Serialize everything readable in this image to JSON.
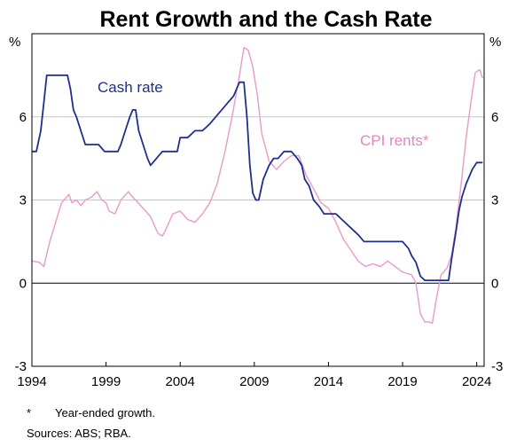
{
  "chart_data": {
    "type": "line",
    "title": "Rent Growth and the Cash Rate",
    "y_unit_left": "%",
    "y_unit_right": "%",
    "ylim": [
      -3,
      9
    ],
    "yticks": [
      -3,
      0,
      3,
      6
    ],
    "xlim": [
      1994,
      2024.5
    ],
    "xticks": [
      1994,
      1999,
      2004,
      2009,
      2014,
      2019,
      2024
    ],
    "grid": true,
    "legend": "inline labels",
    "series": [
      {
        "name": "Cash rate",
        "label": "Cash rate",
        "color": "#1f2f8c",
        "x": [
          1994.0,
          1994.3,
          1994.6,
          1994.8,
          1995.0,
          1995.5,
          1996.0,
          1996.4,
          1996.6,
          1996.8,
          1997.0,
          1997.3,
          1997.6,
          1998.0,
          1998.5,
          1998.9,
          1999.4,
          1999.8,
          2000.0,
          2000.3,
          2000.6,
          2000.8,
          2001.0,
          2001.2,
          2001.5,
          2001.8,
          2002.0,
          2002.4,
          2002.8,
          2003.0,
          2003.4,
          2003.8,
          2004.0,
          2004.5,
          2005.0,
          2005.5,
          2006.0,
          2006.4,
          2006.8,
          2007.2,
          2007.6,
          2008.0,
          2008.3,
          2008.5,
          2008.7,
          2008.9,
          2009.1,
          2009.3,
          2009.6,
          2010.0,
          2010.3,
          2010.6,
          2011.0,
          2011.5,
          2011.9,
          2012.2,
          2012.4,
          2012.7,
          2013.0,
          2013.4,
          2013.7,
          2014.0,
          2014.5,
          2015.0,
          2015.5,
          2016.0,
          2016.4,
          2016.6,
          2017.0,
          2018.0,
          2019.0,
          2019.4,
          2019.6,
          2019.9,
          2020.2,
          2020.5,
          2021.0,
          2021.5,
          2022.1,
          2022.3,
          2022.6,
          2022.8,
          2023.0,
          2023.3,
          2023.7,
          2024.0,
          2024.4
        ],
        "values": [
          4.75,
          4.75,
          5.5,
          6.5,
          7.5,
          7.5,
          7.5,
          7.5,
          7.0,
          6.25,
          6.0,
          5.5,
          5.0,
          5.0,
          5.0,
          4.75,
          4.75,
          4.75,
          5.0,
          5.5,
          6.0,
          6.25,
          6.25,
          5.5,
          5.0,
          4.5,
          4.25,
          4.5,
          4.75,
          4.75,
          4.75,
          4.75,
          5.25,
          5.25,
          5.5,
          5.5,
          5.75,
          6.0,
          6.25,
          6.5,
          6.75,
          7.25,
          7.25,
          6.0,
          4.25,
          3.25,
          3.0,
          3.0,
          3.75,
          4.25,
          4.5,
          4.5,
          4.75,
          4.75,
          4.5,
          4.25,
          3.75,
          3.5,
          3.0,
          2.75,
          2.5,
          2.5,
          2.5,
          2.25,
          2.0,
          1.75,
          1.5,
          1.5,
          1.5,
          1.5,
          1.5,
          1.25,
          1.0,
          0.75,
          0.25,
          0.1,
          0.1,
          0.1,
          0.1,
          0.85,
          1.85,
          2.6,
          3.1,
          3.6,
          4.1,
          4.35,
          4.35
        ]
      },
      {
        "name": "CPI rents*",
        "label": "CPI rents*",
        "color": "#e8a0cc",
        "x": [
          1994.0,
          1994.5,
          1994.8,
          1995.2,
          1995.6,
          1996.0,
          1996.5,
          1996.7,
          1997.0,
          1997.3,
          1997.6,
          1998.0,
          1998.4,
          1998.7,
          1999.0,
          1999.2,
          1999.6,
          2000.0,
          2000.5,
          2000.8,
          2001.0,
          2001.5,
          2002.0,
          2002.5,
          2002.8,
          2003.0,
          2003.5,
          2004.0,
          2004.5,
          2005.0,
          2005.5,
          2006.0,
          2006.5,
          2007.0,
          2007.5,
          2008.0,
          2008.3,
          2008.6,
          2008.9,
          2009.2,
          2009.5,
          2010.0,
          2010.5,
          2011.0,
          2011.5,
          2012.0,
          2012.5,
          2013.0,
          2013.5,
          2014.0,
          2014.5,
          2015.0,
          2015.5,
          2016.0,
          2016.5,
          2017.0,
          2017.5,
          2018.0,
          2018.5,
          2019.0,
          2019.3,
          2019.6,
          2019.9,
          2020.2,
          2020.5,
          2020.8,
          2021.0,
          2021.3,
          2021.6,
          2022.0,
          2022.3,
          2022.6,
          2023.0,
          2023.3,
          2023.6,
          2023.9,
          2024.2,
          2024.4
        ],
        "values": [
          0.8,
          0.75,
          0.6,
          1.5,
          2.2,
          2.9,
          3.2,
          2.9,
          3.0,
          2.8,
          3.0,
          3.1,
          3.3,
          3.0,
          2.9,
          2.6,
          2.5,
          3.0,
          3.3,
          3.1,
          3.0,
          2.7,
          2.4,
          1.8,
          1.7,
          1.9,
          2.5,
          2.6,
          2.3,
          2.2,
          2.5,
          2.9,
          3.6,
          4.7,
          6.0,
          7.5,
          8.5,
          8.4,
          7.8,
          6.8,
          5.4,
          4.4,
          4.1,
          4.4,
          4.6,
          4.6,
          3.9,
          3.4,
          2.9,
          2.7,
          2.2,
          1.6,
          1.2,
          0.8,
          0.6,
          0.7,
          0.6,
          0.8,
          0.6,
          0.4,
          0.35,
          0.3,
          0.0,
          -1.1,
          -1.4,
          -1.4,
          -1.45,
          -0.5,
          0.3,
          0.55,
          1.0,
          2.0,
          3.8,
          5.3,
          6.5,
          7.6,
          7.7,
          7.4
        ]
      }
    ]
  },
  "footnote": {
    "marker": "*",
    "text": "Year-ended growth."
  },
  "sources": "Sources: ABS; RBA."
}
